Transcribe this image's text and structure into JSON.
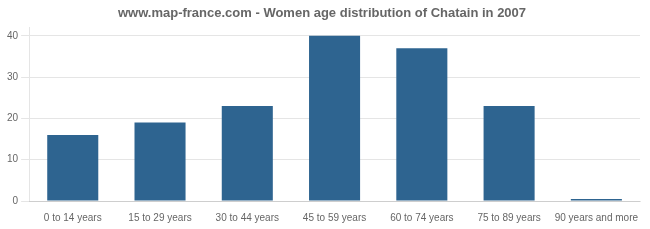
{
  "chart_data": {
    "type": "bar",
    "title": "www.map-france.com - Women age distribution of Chatain in 2007",
    "categories": [
      "0 to 14 years",
      "15 to 29 years",
      "30 to 44 years",
      "45 to 59 years",
      "60 to 74 years",
      "75 to 89 years",
      "90 years and more"
    ],
    "values": [
      16,
      19,
      23,
      40,
      37,
      23,
      0.5
    ],
    "color": "#2e6490",
    "ylim": [
      0,
      42
    ],
    "yticks": [
      0,
      10,
      20,
      30,
      40
    ],
    "grid": true
  }
}
